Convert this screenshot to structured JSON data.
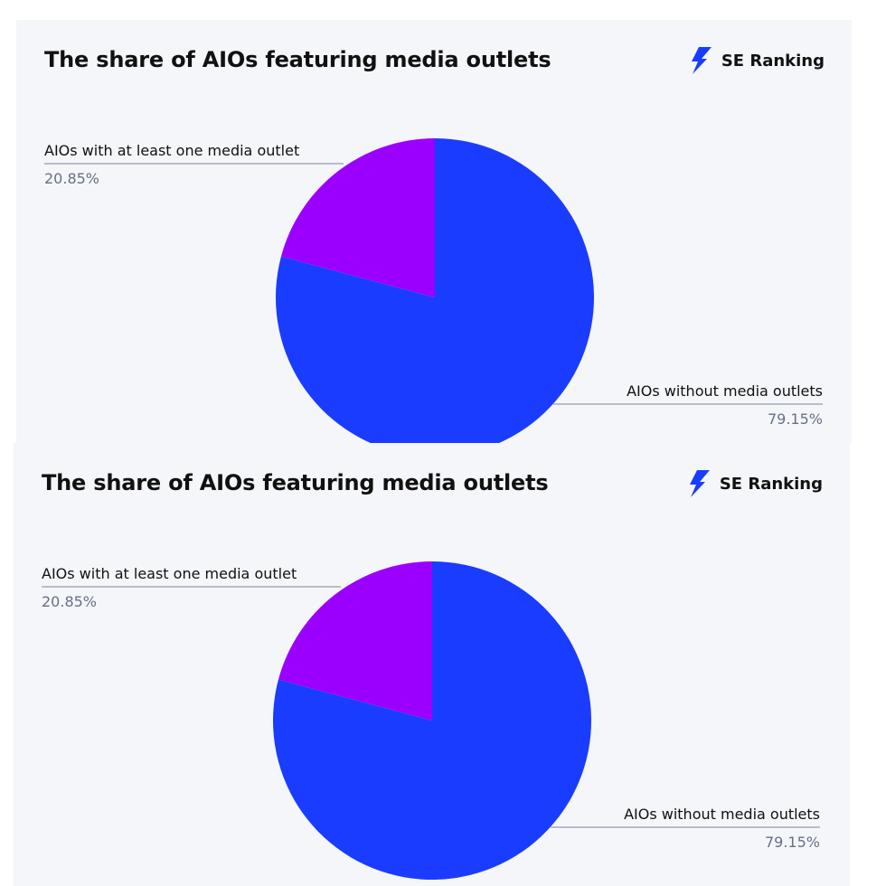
{
  "chart_data": [
    {
      "type": "pie",
      "title": "The share of AIOs featuring media outlets",
      "brand": "SE Ranking",
      "slices": [
        {
          "label": "AIOs without media outlets",
          "value": 79.15,
          "display": "79.15%",
          "color": "#1a3cff"
        },
        {
          "label": "AIOs with at least one media outlet",
          "value": 20.85,
          "display": "20.85%",
          "color": "#9b00ff"
        }
      ]
    },
    {
      "type": "pie",
      "title": "The share of AIOs featuring media outlets",
      "brand": "SE Ranking",
      "slices": [
        {
          "label": "AIOs without media outlets",
          "value": 79.15,
          "display": "79.15%",
          "color": "#1a3cff"
        },
        {
          "label": "AIOs with at least one media outlet",
          "value": 20.85,
          "display": "20.85%",
          "color": "#9b00ff"
        }
      ]
    }
  ],
  "colors": {
    "brand_blue": "#1a3cff",
    "brand_purple": "#9b00ff",
    "panel_background": "#f5f6fa",
    "leader_line": "#7a8499"
  }
}
